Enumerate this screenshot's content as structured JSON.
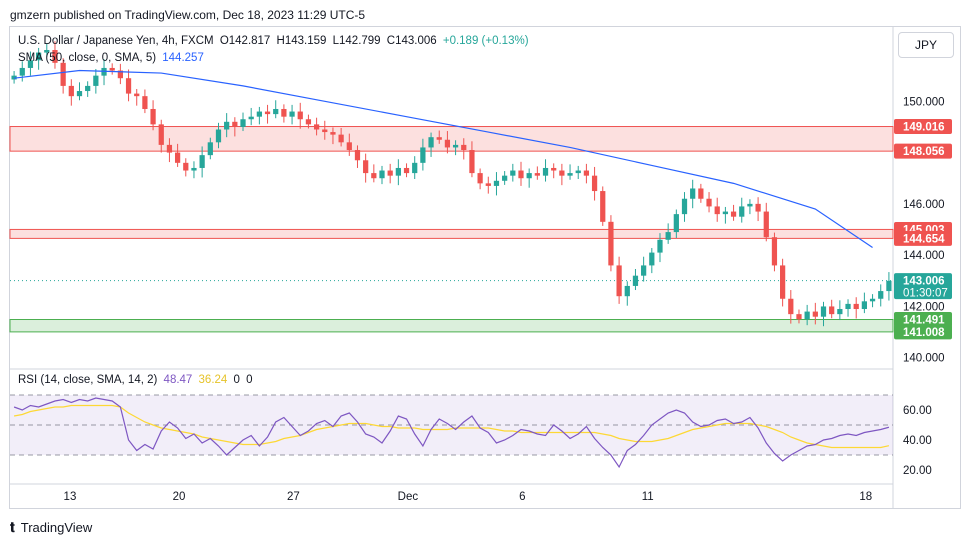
{
  "header": {
    "published": "gmzern published on TradingView.com, Dec 18, 2023 11:29 UTC-5"
  },
  "legend": {
    "symbol": "U.S. Dollar / Japanese Yen, 4h, FXCM",
    "open": "O142.817",
    "high": "H143.159",
    "low": "L142.799",
    "close": "C143.006",
    "change": "+0.189 (+0.13%)",
    "sma_label": "SMA (50, close, 0, SMA, 5)",
    "sma_value": "144.257"
  },
  "rsi_legend": {
    "label": "RSI (14, close, SMA, 14, 2)",
    "rsi": "48.47",
    "sma": "36.24",
    "z1": "0",
    "z2": "0"
  },
  "currency_button": "JPY",
  "footer": {
    "brand": "TradingView"
  },
  "colors": {
    "up": "#26a69a",
    "down": "#ef5350",
    "sma": "#2962ff",
    "rsi": "#7e57c2",
    "rsi_sma": "#fdd835"
  },
  "chart_data": {
    "type": "candlestick",
    "price_axis": {
      "ticks": [
        "140.000",
        "142.000",
        "144.000",
        "146.000",
        "148.000",
        "150.000"
      ],
      "range": [
        139.6,
        152.0
      ]
    },
    "x_axis": {
      "ticks": [
        "13",
        "20",
        "27",
        "Dec",
        "6",
        "11",
        "18"
      ]
    },
    "zones": [
      {
        "top": 149.016,
        "bottom": 148.056,
        "kind": "resistance"
      },
      {
        "top": 145.003,
        "bottom": 144.654,
        "kind": "resistance"
      },
      {
        "top": 141.491,
        "bottom": 141.008,
        "kind": "support"
      }
    ],
    "price_labels": [
      {
        "value": 149.016,
        "text": "149.016",
        "color": "#ef5350"
      },
      {
        "value": 148.056,
        "text": "148.056",
        "color": "#ef5350"
      },
      {
        "value": 145.003,
        "text": "145.003",
        "color": "#ef5350"
      },
      {
        "value": 144.654,
        "text": "144.654",
        "color": "#ef5350"
      },
      {
        "value": 143.006,
        "text": "143.006",
        "sub": "01:30:07",
        "color": "#26a69a"
      },
      {
        "value": 141.491,
        "text": "141.491",
        "color": "#4caf50"
      },
      {
        "value": 141.008,
        "text": "141.008",
        "color": "#4caf50"
      }
    ],
    "last_price": 143.006,
    "close_path": [
      151.0,
      151.3,
      151.6,
      151.9,
      152.0,
      151.5,
      150.6,
      150.2,
      150.4,
      150.6,
      151.0,
      151.3,
      151.2,
      150.9,
      150.3,
      150.2,
      149.7,
      149.1,
      148.3,
      148.0,
      147.6,
      147.3,
      147.4,
      147.9,
      148.4,
      148.9,
      149.2,
      149.0,
      149.3,
      149.4,
      149.6,
      149.5,
      149.7,
      149.4,
      149.6,
      149.3,
      149.1,
      148.9,
      148.8,
      148.7,
      148.4,
      148.1,
      147.7,
      147.2,
      147.0,
      147.3,
      147.1,
      147.4,
      147.2,
      147.6,
      148.2,
      148.6,
      148.5,
      148.2,
      148.3,
      148.1,
      147.2,
      146.8,
      146.7,
      146.9,
      147.1,
      147.3,
      147.0,
      147.2,
      147.1,
      147.4,
      147.3,
      147.1,
      147.2,
      147.3,
      147.1,
      146.5,
      145.3,
      143.6,
      142.4,
      142.8,
      143.2,
      143.6,
      144.1,
      144.6,
      144.9,
      145.6,
      146.2,
      146.6,
      146.2,
      145.9,
      145.6,
      145.7,
      145.5,
      145.9,
      146.0,
      145.7,
      144.7,
      143.6,
      142.3,
      141.7,
      141.5,
      141.8,
      141.6,
      142.0,
      141.7,
      141.9,
      142.1,
      141.9,
      142.2,
      142.3,
      142.6,
      143.0
    ],
    "sma50": [
      {
        "i": 0,
        "v": 150.9
      },
      {
        "i": 8,
        "v": 151.2
      },
      {
        "i": 18,
        "v": 151.1
      },
      {
        "i": 28,
        "v": 150.6
      },
      {
        "i": 38,
        "v": 150.0
      },
      {
        "i": 48,
        "v": 149.4
      },
      {
        "i": 58,
        "v": 148.8
      },
      {
        "i": 68,
        "v": 148.2
      },
      {
        "i": 78,
        "v": 147.5
      },
      {
        "i": 88,
        "v": 146.8
      },
      {
        "i": 98,
        "v": 145.8
      },
      {
        "i": 105,
        "v": 144.3
      }
    ],
    "rsi": {
      "axis_ticks": [
        "20.00",
        "40.00",
        "60.00"
      ],
      "range": [
        12,
        80
      ],
      "band": [
        30,
        70
      ],
      "rsi_values": [
        62,
        60,
        63,
        62,
        64,
        66,
        67,
        65,
        67,
        66,
        68,
        67,
        66,
        62,
        40,
        33,
        37,
        34,
        46,
        52,
        48,
        41,
        44,
        38,
        41,
        36,
        30,
        35,
        40,
        43,
        36,
        42,
        52,
        55,
        49,
        43,
        46,
        51,
        53,
        49,
        56,
        58,
        52,
        44,
        42,
        38,
        46,
        56,
        54,
        44,
        36,
        47,
        54,
        51,
        47,
        52,
        56,
        48,
        45,
        38,
        40,
        43,
        47,
        46,
        44,
        43,
        50,
        46,
        41,
        44,
        49,
        41,
        35,
        30,
        22,
        33,
        37,
        43,
        50,
        54,
        58,
        60,
        58,
        52,
        49,
        50,
        53,
        54,
        51,
        52,
        55,
        48,
        38,
        31,
        26,
        30,
        33,
        36,
        37,
        40,
        41,
        43,
        44,
        43,
        45,
        46,
        47,
        48.5
      ],
      "sma_values": [
        56,
        57,
        59,
        60,
        61,
        62,
        62,
        63,
        63,
        63,
        63,
        63,
        63,
        62,
        58,
        55,
        52,
        50,
        48,
        47,
        46,
        45,
        44,
        42,
        41,
        40,
        39,
        38,
        37,
        37,
        37,
        38,
        39,
        41,
        42,
        43,
        45,
        47,
        48,
        49,
        50,
        51,
        51,
        51,
        50,
        49,
        49,
        48,
        48,
        48,
        47,
        47,
        47,
        47,
        48,
        48,
        48,
        48,
        48,
        47,
        46,
        46,
        45,
        45,
        45,
        45,
        45,
        45,
        45,
        45,
        45,
        45,
        44,
        43,
        41,
        40,
        39,
        39,
        39,
        40,
        41,
        43,
        45,
        47,
        48,
        49,
        50,
        51,
        51,
        51,
        51,
        50,
        49,
        47,
        45,
        42,
        40,
        38,
        37,
        36,
        35,
        35,
        35,
        35,
        35,
        35,
        35,
        36.2
      ]
    }
  }
}
